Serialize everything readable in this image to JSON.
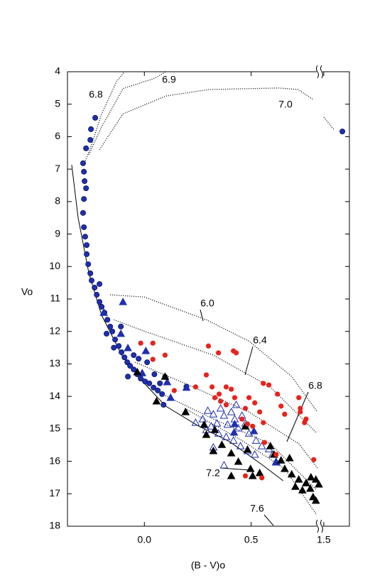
{
  "chart_data": {
    "type": "scatter",
    "x_label": "(B - V)o",
    "y_label": "Vo",
    "xlim": [
      -0.36,
      1.62
    ],
    "xbreak": [
      0.82,
      1.48
    ],
    "xticks": [
      {
        "value": 0,
        "label": "0.0"
      },
      {
        "value": 0.5,
        "label": "0.5"
      },
      {
        "value": 1.5,
        "label": "1.5"
      }
    ],
    "ylim": [
      4,
      18
    ],
    "y_inverted": true,
    "yticks": [
      4,
      5,
      6,
      7,
      8,
      9,
      10,
      11,
      12,
      13,
      14,
      15,
      16,
      17,
      18
    ],
    "series": [
      {
        "marker": "circle",
        "color": "#1f2fb0",
        "x": [
          -0.23,
          -0.25,
          -0.253,
          -0.273,
          -0.287,
          -0.283,
          -0.28,
          -0.273,
          -0.283,
          -0.287,
          -0.283,
          -0.277,
          -0.27,
          -0.27,
          -0.263,
          -0.253,
          -0.247,
          -0.233,
          -0.223,
          -0.21,
          -0.2,
          -0.187,
          -0.173,
          -0.16,
          -0.15,
          -0.137,
          -0.12,
          -0.107,
          -0.093,
          -0.08,
          -0.067,
          -0.05,
          -0.033,
          -0.017,
          0.003,
          0.023,
          0.043,
          0.063,
          0.083,
          -0.05,
          -0.027,
          -0.143,
          0.097,
          0.073,
          0.013,
          -0.077,
          0.047,
          0.197,
          -0.11,
          -0.177,
          0.09,
          -0.21,
          1.587
        ],
        "y": [
          5.42,
          5.77,
          6.1,
          6.36,
          6.82,
          7.08,
          7.37,
          7.59,
          7.92,
          8.35,
          8.79,
          9.08,
          9.34,
          9.62,
          9.93,
          10.21,
          10.43,
          10.65,
          10.87,
          11.09,
          11.24,
          11.42,
          11.64,
          11.85,
          12.0,
          12.25,
          12.45,
          12.64,
          12.8,
          12.95,
          13.06,
          13.17,
          13.32,
          13.45,
          13.54,
          13.6,
          13.73,
          13.82,
          13.93,
          12.73,
          12.84,
          12.5,
          13.4,
          13.6,
          12.95,
          13.39,
          13.32,
          13.7,
          11.85,
          12.07,
          14.26,
          10.54,
          5.84
        ]
      },
      {
        "marker": "triangle",
        "color": "#1f2fb0",
        "x": [
          -0.1,
          -0.19,
          -0.11,
          -0.077,
          0.007,
          -0.01,
          0.107,
          0.197,
          0.42,
          0.513,
          0.617,
          0.423,
          0.123
        ],
        "y": [
          11.09,
          11.42,
          12.07,
          12.51,
          12.6,
          13.28,
          13.56,
          13.73,
          15.11,
          15.07,
          16.03,
          14.85,
          14.04
        ]
      },
      {
        "marker": "triangle-open",
        "color": "#1f2fb0",
        "x": [
          0.273,
          0.297,
          0.323,
          0.34,
          0.357,
          0.373,
          0.39,
          0.407,
          0.423,
          0.44,
          0.457,
          0.473,
          0.49,
          0.313,
          0.347,
          0.383,
          0.417,
          0.45,
          0.483,
          0.517,
          0.55,
          0.583,
          0.6,
          0.617,
          0.373,
          0.323,
          0.43,
          0.24,
          0.29,
          0.523
        ],
        "y": [
          14.7,
          14.44,
          14.55,
          14.83,
          14.37,
          14.59,
          14.87,
          14.48,
          14.7,
          14.98,
          14.59,
          14.83,
          15.14,
          14.92,
          15.14,
          15.25,
          15.36,
          15.53,
          15.68,
          15.79,
          15.53,
          15.62,
          15.79,
          16.01,
          16.12,
          15.57,
          14.26,
          14.81,
          15.03,
          15.36
        ]
      },
      {
        "marker": "triangle",
        "color": "#000000",
        "x": [
          -0.033,
          0.057,
          0.097,
          0.193,
          0.28,
          0.29,
          0.33,
          0.363,
          0.407,
          0.44,
          0.473,
          0.483,
          0.497,
          0.507,
          0.54,
          0.59,
          0.607,
          0.64,
          0.657,
          0.68,
          0.69,
          0.707,
          0.723,
          0.74,
          0.757,
          0.777,
          0.79,
          0.803,
          0.78,
          0.803,
          0.817,
          0.407,
          0.323
        ],
        "y": [
          13.25,
          14.15,
          13.39,
          14.48,
          14.87,
          15.18,
          15.03,
          15.49,
          15.75,
          16.01,
          14.92,
          15.64,
          16.23,
          16.45,
          16.36,
          15.53,
          15.79,
          15.97,
          16.23,
          15.9,
          16.4,
          16.78,
          16.56,
          16.89,
          16.67,
          16.84,
          17.1,
          17.21,
          16.49,
          16.56,
          16.71,
          16.45,
          15.68
        ]
      },
      {
        "marker": "circle",
        "color": "#e8221c",
        "x": [
          -0.017,
          0.04,
          0.04,
          0.097,
          0.14,
          0.3,
          0.347,
          0.417,
          0.43,
          0.29,
          0.317,
          0.35,
          0.383,
          0.407,
          0.33,
          0.357,
          0.383,
          0.423,
          0.473,
          0.49,
          0.517,
          0.54,
          0.557,
          0.457,
          0.483,
          0.507,
          0.557,
          0.583,
          0.623,
          0.64,
          0.657,
          0.563,
          0.617,
          0.723,
          0.73,
          0.73,
          0.757,
          0.75,
          0.793,
          0.24,
          0.473,
          0.55
        ],
        "y": [
          12.36,
          12.36,
          12.86,
          12.73,
          13.82,
          12.45,
          12.66,
          12.6,
          12.66,
          13.34,
          13.71,
          13.93,
          13.71,
          13.78,
          14.04,
          14.15,
          14.26,
          14.04,
          14.37,
          14.04,
          14.2,
          14.48,
          14.81,
          14.7,
          14.85,
          14.92,
          13.6,
          13.65,
          13.93,
          14.3,
          14.55,
          15.42,
          15.79,
          14.04,
          14.37,
          14.48,
          14.7,
          14.81,
          15.95,
          13.71,
          16.45,
          16.51
        ]
      }
    ],
    "isochrones": [
      {
        "label": "6.8",
        "style": "dotted",
        "x": [
          -0.283,
          -0.25,
          -0.2,
          -0.13,
          -0.093
        ],
        "y": [
          6.87,
          6.3,
          5.3,
          4.3,
          4.0
        ]
      },
      {
        "label": "6.9",
        "style": "dotted",
        "x": [
          -0.26,
          -0.2,
          -0.1,
          0.05,
          0.1
        ],
        "y": [
          6.55,
          5.7,
          4.52,
          4.2,
          4.0
        ]
      },
      {
        "label": "7.0",
        "style": "dotted",
        "x": [
          -0.21,
          -0.1,
          0.1,
          0.3,
          0.63,
          0.72,
          0.79,
          null,
          1.5,
          1.55
        ],
        "y": [
          6.4,
          5.3,
          4.75,
          4.55,
          4.5,
          4.55,
          4.85,
          null,
          5.4,
          5.8
        ]
      },
      {
        "style": "solid",
        "x": [
          -0.34,
          -0.31,
          -0.26,
          -0.2,
          -0.1,
          0.0,
          0.1,
          0.25,
          0.4,
          0.55,
          0.65
        ],
        "y": [
          6.87,
          8.5,
          10.2,
          11.5,
          12.8,
          13.6,
          14.3,
          14.9,
          15.4,
          16.1,
          16.6
        ]
      },
      {
        "label": "6.0",
        "style": "dotted",
        "x": [
          -0.16,
          0.0,
          0.29,
          0.49,
          0.69,
          0.81
        ],
        "y": [
          10.87,
          10.94,
          11.64,
          12.3,
          13.39,
          14.48
        ]
      },
      {
        "label": "6.4",
        "style": "dotted",
        "x": [
          -0.143,
          -0.01,
          0.323,
          0.59,
          0.807
        ],
        "y": [
          11.64,
          11.97,
          12.73,
          13.71,
          15.13
        ]
      },
      {
        "label": "6.8",
        "style": "dotted",
        "x": [
          -0.043,
          0.19,
          0.49,
          0.723,
          0.813
        ],
        "y": [
          12.95,
          13.6,
          14.48,
          15.46,
          16.23
        ]
      },
      {
        "label": "7.2",
        "style": "dotted",
        "x": [
          0.09,
          0.323,
          0.59,
          0.807
        ],
        "y": [
          13.95,
          14.7,
          15.46,
          16.89
        ]
      },
      {
        "label": "7.6",
        "style": "dotted",
        "x": [
          0.19,
          0.457,
          0.657,
          0.807
        ],
        "y": [
          14.37,
          15.36,
          16.23,
          17.65
        ]
      }
    ]
  }
}
